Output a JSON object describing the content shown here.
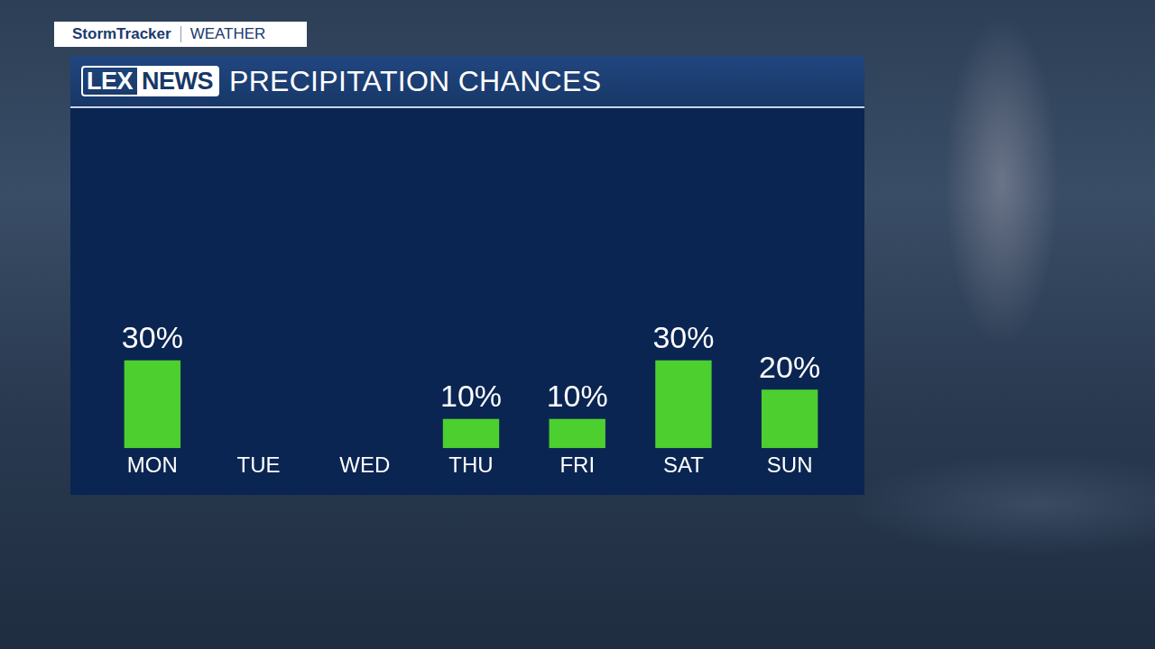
{
  "header": {
    "tag": "StormTracker",
    "section": "WEATHER",
    "logo": [
      "LEX",
      "NEWS"
    ]
  },
  "chart_data": {
    "type": "bar",
    "title": "PRECIPITATION CHANCES",
    "categories": [
      "MON",
      "TUE",
      "WED",
      "THU",
      "FRI",
      "SAT",
      "SUN"
    ],
    "values": [
      30,
      null,
      null,
      10,
      10,
      30,
      20
    ],
    "value_labels": [
      "30%",
      null,
      null,
      "10%",
      "10%",
      "30%",
      "20%"
    ],
    "color": "#4ccf2f",
    "ylim": [
      0,
      100
    ],
    "grid": false,
    "data_labels": true,
    "tick_labels": "x"
  }
}
